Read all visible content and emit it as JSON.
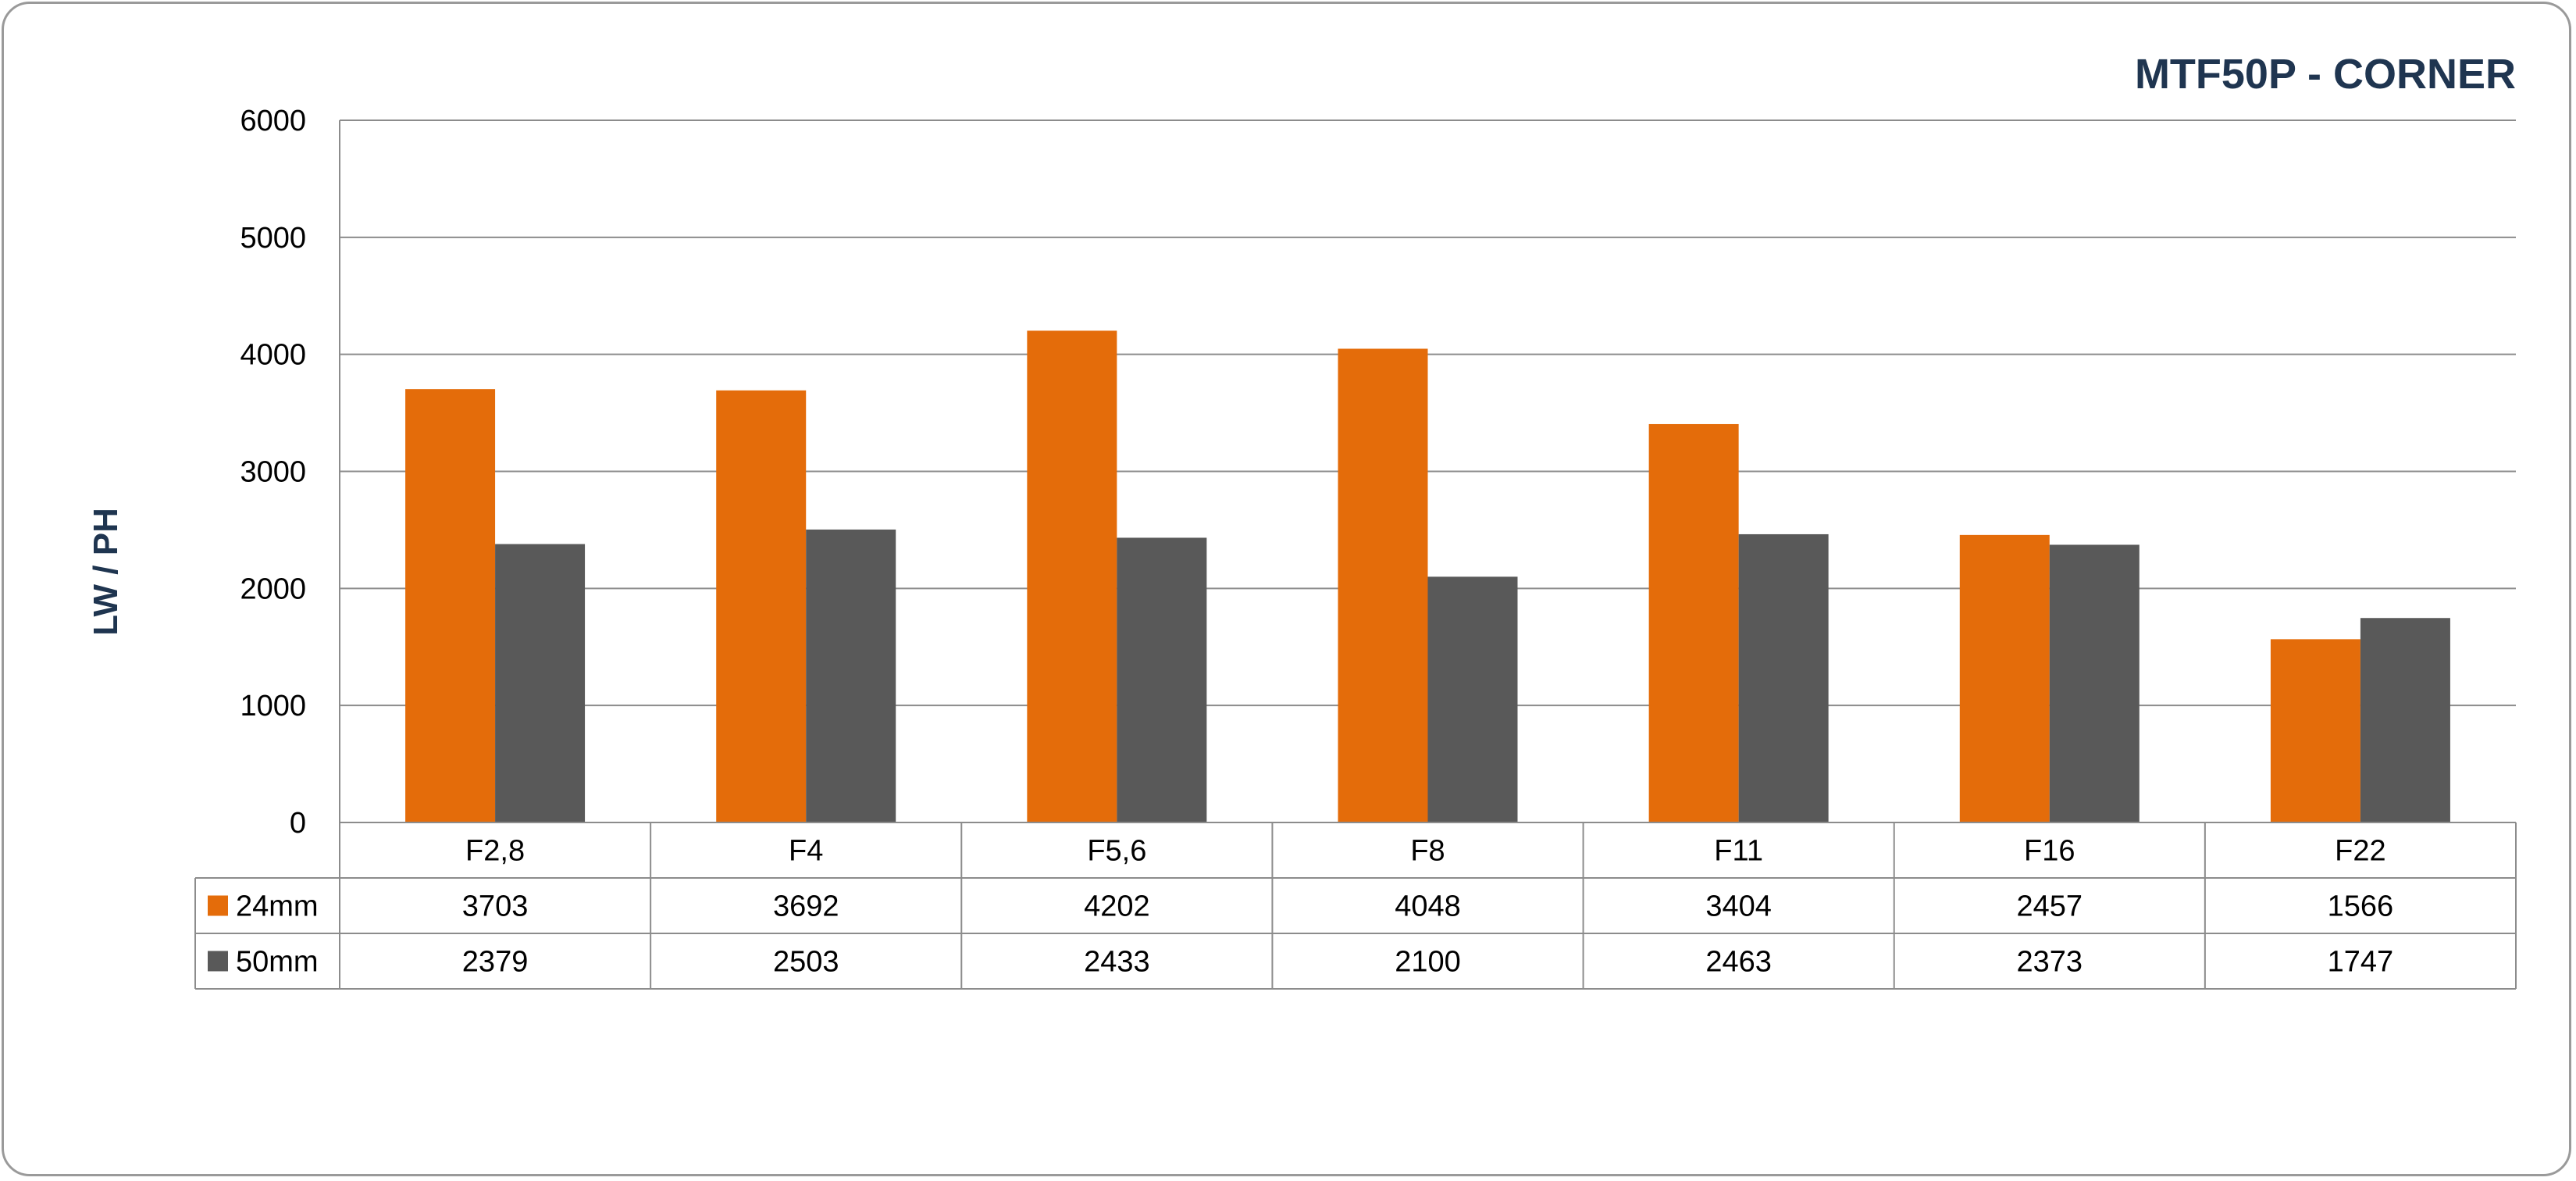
{
  "chart_data": {
    "type": "bar",
    "title": "MTF50P - CORNER",
    "ylabel": "LW / PH",
    "xlabel": "",
    "ylim": [
      0,
      6000
    ],
    "yticks": [
      0,
      1000,
      2000,
      3000,
      4000,
      5000,
      6000
    ],
    "grid": true,
    "legend": "data-table",
    "categories": [
      "F2,8",
      "F4",
      "F5,6",
      "F8",
      "F11",
      "F16",
      "F22"
    ],
    "series": [
      {
        "name": "24mm",
        "color": "#e46c0a",
        "values": [
          3703,
          3692,
          4202,
          4048,
          3404,
          2457,
          1566
        ]
      },
      {
        "name": "50mm",
        "color": "#595959",
        "values": [
          2379,
          2503,
          2433,
          2100,
          2463,
          2373,
          1747
        ]
      }
    ]
  }
}
